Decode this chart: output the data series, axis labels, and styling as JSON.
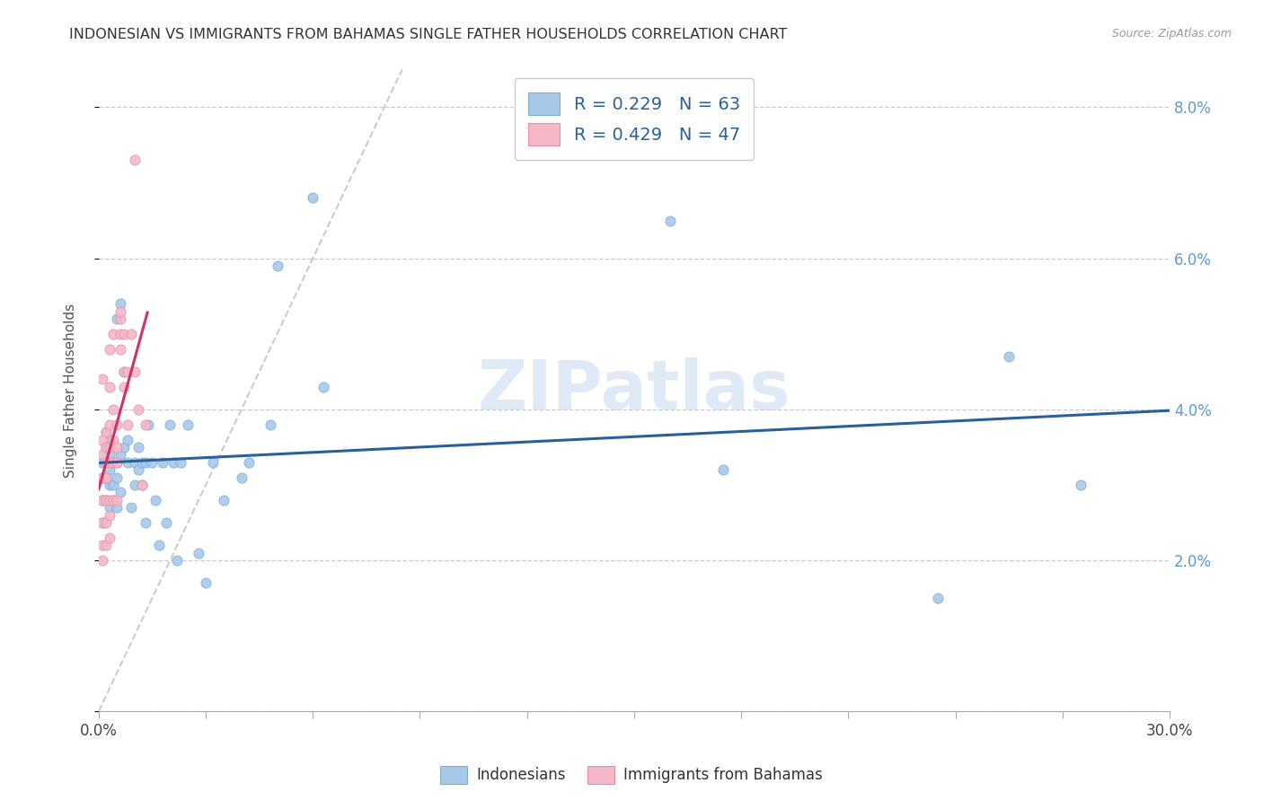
{
  "title": "INDONESIAN VS IMMIGRANTS FROM BAHAMAS SINGLE FATHER HOUSEHOLDS CORRELATION CHART",
  "source": "Source: ZipAtlas.com",
  "ylabel": "Single Father Households",
  "watermark": "ZIPatlas",
  "legend_label1": "Indonesians",
  "legend_label2": "Immigrants from Bahamas",
  "blue_color": "#a8c8e8",
  "blue_color_edge": "#7aafd4",
  "pink_color": "#f4b8c8",
  "pink_color_edge": "#e890a8",
  "trendline_blue": "#2a6099",
  "trendline_pink": "#cc3366",
  "diagonal_color": "#cccccc",
  "xlim": [
    0.0,
    0.3
  ],
  "ylim": [
    0.0,
    0.085
  ],
  "yticks": [
    0.0,
    0.02,
    0.04,
    0.06,
    0.08
  ],
  "xtick_count": 10,
  "blue_x": [
    0.001,
    0.001,
    0.001,
    0.001,
    0.002,
    0.002,
    0.002,
    0.002,
    0.002,
    0.003,
    0.003,
    0.003,
    0.003,
    0.003,
    0.004,
    0.004,
    0.004,
    0.005,
    0.005,
    0.005,
    0.005,
    0.006,
    0.006,
    0.006,
    0.007,
    0.007,
    0.008,
    0.008,
    0.009,
    0.01,
    0.01,
    0.011,
    0.011,
    0.012,
    0.012,
    0.013,
    0.013,
    0.014,
    0.015,
    0.016,
    0.017,
    0.018,
    0.019,
    0.02,
    0.021,
    0.022,
    0.023,
    0.025,
    0.028,
    0.03,
    0.032,
    0.035,
    0.04,
    0.042,
    0.048,
    0.05,
    0.06,
    0.063,
    0.16,
    0.175,
    0.235,
    0.255,
    0.275
  ],
  "blue_y": [
    0.025,
    0.028,
    0.031,
    0.033,
    0.028,
    0.031,
    0.033,
    0.035,
    0.037,
    0.027,
    0.03,
    0.032,
    0.034,
    0.036,
    0.028,
    0.03,
    0.033,
    0.027,
    0.031,
    0.033,
    0.052,
    0.029,
    0.034,
    0.054,
    0.035,
    0.045,
    0.033,
    0.036,
    0.027,
    0.03,
    0.033,
    0.032,
    0.035,
    0.03,
    0.033,
    0.025,
    0.033,
    0.038,
    0.033,
    0.028,
    0.022,
    0.033,
    0.025,
    0.038,
    0.033,
    0.02,
    0.033,
    0.038,
    0.021,
    0.017,
    0.033,
    0.028,
    0.031,
    0.033,
    0.038,
    0.059,
    0.068,
    0.043,
    0.065,
    0.032,
    0.015,
    0.047,
    0.03
  ],
  "pink_x": [
    0.001,
    0.001,
    0.001,
    0.001,
    0.001,
    0.001,
    0.001,
    0.001,
    0.002,
    0.002,
    0.002,
    0.002,
    0.002,
    0.002,
    0.002,
    0.003,
    0.003,
    0.003,
    0.003,
    0.003,
    0.003,
    0.003,
    0.003,
    0.004,
    0.004,
    0.004,
    0.004,
    0.004,
    0.005,
    0.005,
    0.005,
    0.005,
    0.006,
    0.006,
    0.006,
    0.006,
    0.007,
    0.007,
    0.007,
    0.008,
    0.008,
    0.009,
    0.01,
    0.01,
    0.011,
    0.012,
    0.013
  ],
  "pink_y": [
    0.02,
    0.022,
    0.025,
    0.028,
    0.031,
    0.034,
    0.036,
    0.044,
    0.022,
    0.025,
    0.028,
    0.031,
    0.033,
    0.035,
    0.037,
    0.023,
    0.026,
    0.028,
    0.033,
    0.035,
    0.038,
    0.043,
    0.048,
    0.028,
    0.033,
    0.036,
    0.04,
    0.05,
    0.028,
    0.033,
    0.035,
    0.038,
    0.048,
    0.05,
    0.052,
    0.053,
    0.043,
    0.045,
    0.05,
    0.038,
    0.045,
    0.05,
    0.073,
    0.045,
    0.04,
    0.03,
    0.038
  ]
}
